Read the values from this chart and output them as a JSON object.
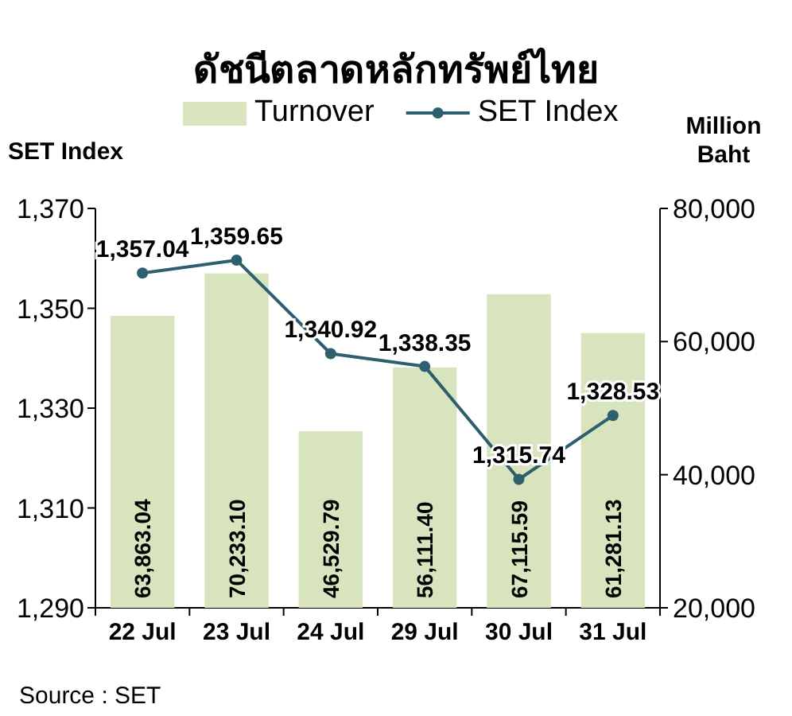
{
  "chart_data": {
    "type": "bar",
    "title": "ดัชนีตลาดหลักทรัพย์ไทย",
    "ylabel": "SET Index",
    "y2label": "Million Baht",
    "categories": [
      "22 Jul",
      "23 Jul",
      "24 Jul",
      "29 Jul",
      "30 Jul",
      "31 Jul"
    ],
    "series": [
      {
        "name": "Turnover",
        "axis": "y2",
        "color": "#d7e4bd",
        "values": [
          63863.04,
          70233.1,
          46529.79,
          56111.4,
          67115.59,
          61281.13
        ],
        "value_labels": [
          "63,863.04",
          "70,233.10",
          "46,529.79",
          "56,111.40",
          "67,115.59",
          "61,281.13"
        ]
      },
      {
        "name": "SET Index",
        "type": "line",
        "axis": "y",
        "color": "#2e5f6e",
        "marker": "circle",
        "values": [
          1357.04,
          1359.65,
          1340.92,
          1338.35,
          1315.74,
          1328.53
        ],
        "value_labels": [
          "1,357.04",
          "1,359.65",
          "1,340.92",
          "1,338.35",
          "1,315.74",
          "1,328.53"
        ]
      }
    ],
    "ylim": [
      1290,
      1370
    ],
    "yticks": [
      {
        "value": 1290,
        "label": "1,290"
      },
      {
        "value": 1310,
        "label": "1,310"
      },
      {
        "value": 1330,
        "label": "1,330"
      },
      {
        "value": 1350,
        "label": "1,350"
      },
      {
        "value": 1370,
        "label": "1,370"
      }
    ],
    "y2lim": [
      20000,
      80000
    ],
    "y2ticks": [
      {
        "value": 20000,
        "label": "20,000"
      },
      {
        "value": 40000,
        "label": "40,000"
      },
      {
        "value": 60000,
        "label": "60,000"
      },
      {
        "value": 80000,
        "label": "80,000"
      }
    ],
    "legend": "top",
    "annotations": [
      "Source : SET"
    ]
  }
}
